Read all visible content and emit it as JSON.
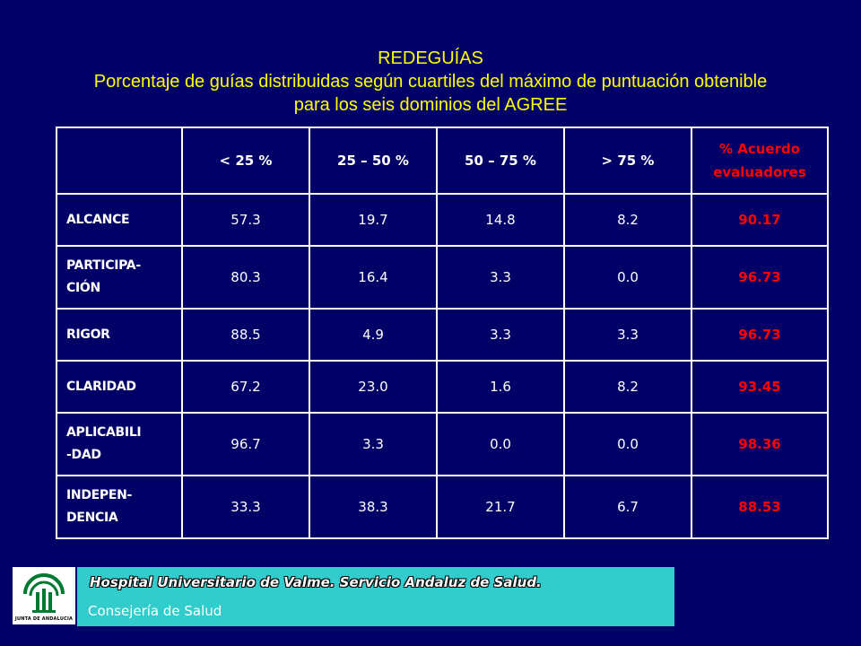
{
  "title": {
    "line1": "REDEGUÍAS",
    "line2": "Porcentaje de guías distribuidas según cuartiles del máximo de puntuación obtenible",
    "line3": "para los seis dominios del AGREE"
  },
  "table": {
    "headers": [
      "",
      "< 25 %",
      "25 – 50 %",
      "50 – 75 %",
      "> 75 %"
    ],
    "agreement_header": {
      "line1": "% Acuerdo",
      "line2": "evaluadores"
    },
    "rows": [
      {
        "label_lines": [
          "ALCANCE"
        ],
        "values": [
          "57.3",
          "19.7",
          "14.8",
          "8.2"
        ],
        "agreement": "90.17"
      },
      {
        "label_lines": [
          "PARTICIPA-",
          "CIÓN"
        ],
        "values": [
          "80.3",
          "16.4",
          "3.3",
          "0.0"
        ],
        "agreement": "96.73"
      },
      {
        "label_lines": [
          "RIGOR"
        ],
        "values": [
          "88.5",
          "4.9",
          "3.3",
          "3.3"
        ],
        "agreement": "96.73"
      },
      {
        "label_lines": [
          "CLARIDAD"
        ],
        "values": [
          "67.2",
          "23.0",
          "1.6",
          "8.2"
        ],
        "agreement": "93.45"
      },
      {
        "label_lines": [
          "APLICABILI",
          "-DAD"
        ],
        "values": [
          "96.7",
          "3.3",
          "0.0",
          "0.0"
        ],
        "agreement": "98.36"
      },
      {
        "label_lines": [
          "INDEPEN-",
          "DENCIA"
        ],
        "values": [
          "33.3",
          "38.3",
          "21.7",
          "6.7"
        ],
        "agreement": "88.53"
      }
    ]
  },
  "footer": {
    "logo_text": "JUNTA DE ANDALUCIA",
    "line1": "Hospital Universitario de  Valme. Servicio Andaluz de Salud.",
    "line2": "Consejería de Salud"
  },
  "colors": {
    "background": "#000066",
    "title": "#ffff00",
    "agreement": "#ff0000",
    "footer_bar": "#33cccc",
    "logo_green": "#007a33"
  }
}
